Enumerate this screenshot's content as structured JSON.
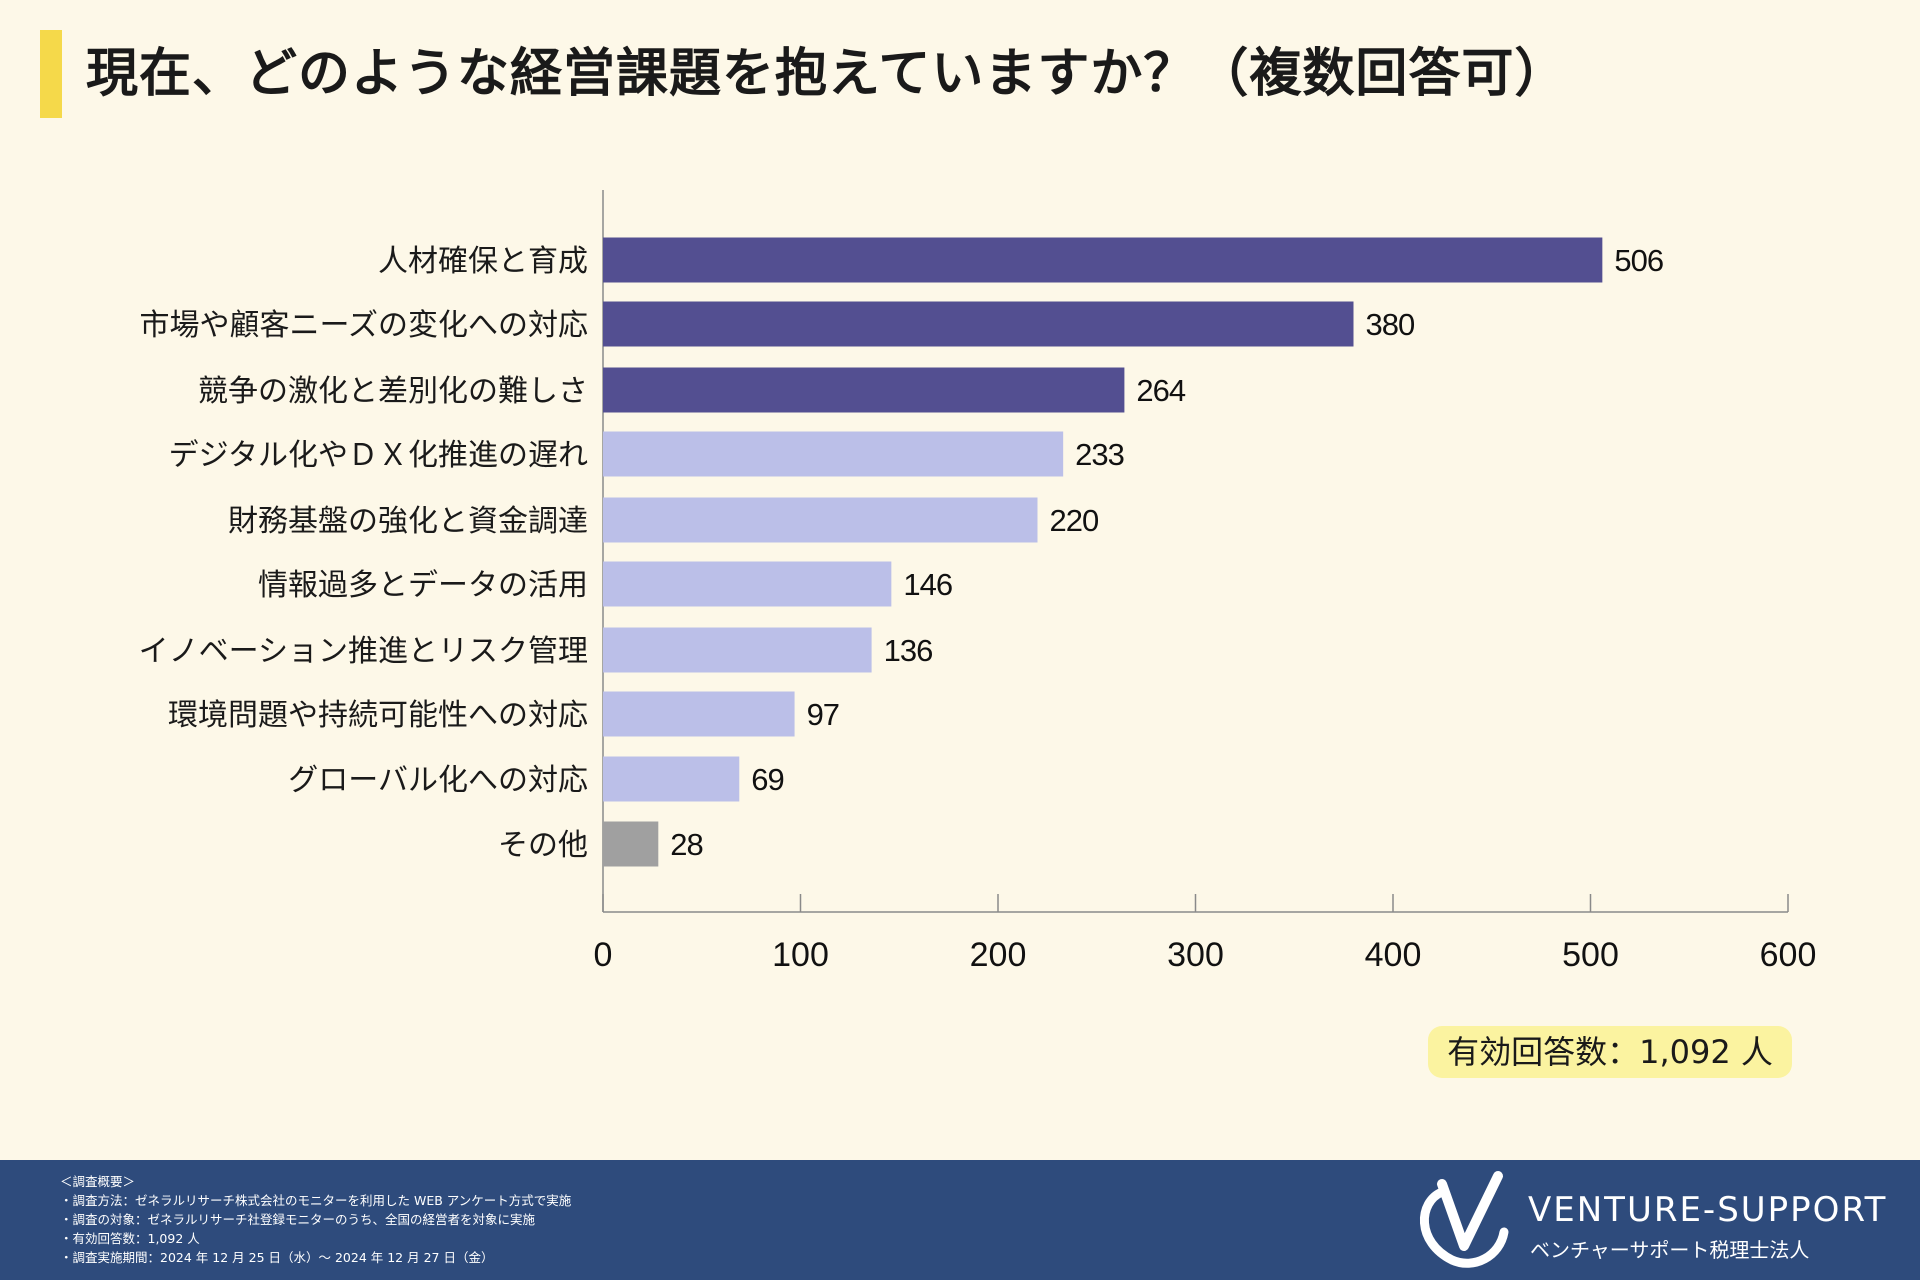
{
  "page": {
    "title": "現在、どのような経営課題を抱えていますか？（複数回答可）",
    "total_label": "有効回答数：1,092 人"
  },
  "colors": {
    "background": "#fdf8e8",
    "title_accent": "#f5d94a",
    "bar_top": "#534f91",
    "bar_light": "#bbbfe8",
    "bar_other": "#a0a0a0",
    "footer": "#2e4b7c",
    "badge": "#fbf3a0"
  },
  "chart_data": {
    "type": "bar",
    "orientation": "horizontal",
    "title": "現在、どのような経営課題を抱えていますか？（複数回答可）",
    "categories": [
      "人材確保と育成",
      "市場や顧客ニーズの変化への対応",
      "競争の激化と差別化の難しさ",
      "デジタル化やＤＸ化推進の遅れ",
      "財務基盤の強化と資金調達",
      "情報過多とデータの活用",
      "イノベーション推進とリスク管理",
      "環境問題や持続可能性への対応",
      "グローバル化への対応",
      "その他"
    ],
    "values": [
      506,
      380,
      264,
      233,
      220,
      146,
      136,
      97,
      69,
      28
    ],
    "bar_color_groups": [
      "top",
      "top",
      "top",
      "light",
      "light",
      "light",
      "light",
      "light",
      "light",
      "other"
    ],
    "xlim": [
      0,
      600
    ],
    "x_ticks": [
      0,
      100,
      200,
      300,
      400,
      500,
      600
    ],
    "xlabel": "",
    "ylabel": ""
  },
  "footer": {
    "survey_lines": [
      "＜調査概要＞",
      "・調査方法：ゼネラルリサーチ株式会社のモニターを利用した WEB アンケート方式で実施",
      "・調査の対象：ゼネラルリサーチ社登録モニターのうち、全国の経営者を対象に実施",
      "・有効回答数：1,092 人",
      "・調査実施期間：2024 年 12 月 25 日（水）～ 2024 年 12 月 27 日（金）"
    ],
    "brand_name": "VENTURE-SUPPORT",
    "brand_sub": "ベンチャーサポート税理士法人"
  }
}
